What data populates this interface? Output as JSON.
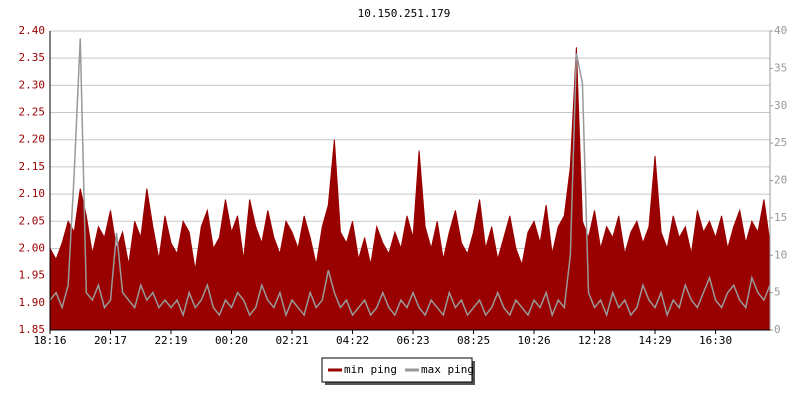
{
  "chart_data": {
    "type": "area",
    "title": "10.150.251.179",
    "categories": [
      "18:16",
      null,
      null,
      null,
      null,
      null,
      null,
      null,
      null,
      null,
      "20:17",
      null,
      null,
      null,
      null,
      null,
      null,
      null,
      null,
      null,
      "22:19",
      null,
      null,
      null,
      null,
      null,
      null,
      null,
      null,
      null,
      "00:20",
      null,
      null,
      null,
      null,
      null,
      null,
      null,
      null,
      null,
      "02:21",
      null,
      null,
      null,
      null,
      null,
      null,
      null,
      null,
      null,
      "04:22",
      null,
      null,
      null,
      null,
      null,
      null,
      null,
      null,
      null,
      "06:23",
      null,
      null,
      null,
      null,
      null,
      null,
      null,
      null,
      null,
      "08:25",
      null,
      null,
      null,
      null,
      null,
      null,
      null,
      null,
      null,
      "10:26",
      null,
      null,
      null,
      null,
      null,
      null,
      null,
      null,
      null,
      "12:28",
      null,
      null,
      null,
      null,
      null,
      null,
      null,
      null,
      null,
      "14:29",
      null,
      null,
      null,
      null,
      null,
      null,
      null,
      null,
      null,
      "16:30",
      null,
      null,
      null,
      null,
      null,
      null,
      null,
      null,
      null
    ],
    "series": [
      {
        "name": "min ping",
        "color": "#990000",
        "style": "area",
        "axis": "y",
        "values": [
          2.0,
          1.98,
          2.01,
          2.05,
          2.03,
          2.11,
          2.06,
          1.99,
          2.04,
          2.02,
          2.07,
          2.0,
          2.03,
          1.97,
          2.05,
          2.02,
          2.11,
          2.04,
          1.98,
          2.06,
          2.01,
          1.99,
          2.05,
          2.03,
          1.96,
          2.04,
          2.07,
          2.0,
          2.02,
          2.09,
          2.03,
          2.06,
          1.98,
          2.09,
          2.04,
          2.01,
          2.07,
          2.02,
          1.99,
          2.05,
          2.03,
          2.0,
          2.06,
          2.02,
          1.97,
          2.04,
          2.08,
          2.2,
          2.03,
          2.01,
          2.05,
          1.98,
          2.02,
          1.97,
          2.04,
          2.01,
          1.99,
          2.03,
          2.0,
          2.06,
          2.02,
          2.18,
          2.04,
          2.0,
          2.05,
          1.98,
          2.03,
          2.07,
          2.01,
          1.99,
          2.03,
          2.09,
          2.0,
          2.04,
          1.98,
          2.02,
          2.06,
          2.0,
          1.97,
          2.03,
          2.05,
          2.01,
          2.08,
          1.99,
          2.04,
          2.06,
          2.15,
          2.37,
          2.05,
          2.02,
          2.07,
          2.0,
          2.04,
          2.02,
          2.06,
          1.99,
          2.03,
          2.05,
          2.01,
          2.04,
          2.17,
          2.03,
          2.0,
          2.06,
          2.02,
          2.04,
          1.99,
          2.07,
          2.03,
          2.05,
          2.02,
          2.06,
          2.0,
          2.04,
          2.07,
          2.01,
          2.05,
          2.03,
          2.09,
          2.01
        ]
      },
      {
        "name": "max ping",
        "color": "#999999",
        "style": "line",
        "axis": "y2",
        "values": [
          4,
          5,
          3,
          6,
          21,
          39,
          5,
          4,
          6,
          3,
          4,
          13,
          5,
          4,
          3,
          6,
          4,
          5,
          3,
          4,
          3,
          4,
          2,
          5,
          3,
          4,
          6,
          3,
          2,
          4,
          3,
          5,
          4,
          2,
          3,
          6,
          4,
          3,
          5,
          2,
          4,
          3,
          2,
          5,
          3,
          4,
          8,
          5,
          3,
          4,
          2,
          3,
          4,
          2,
          3,
          5,
          3,
          2,
          4,
          3,
          5,
          3,
          2,
          4,
          3,
          2,
          5,
          3,
          4,
          2,
          3,
          4,
          2,
          3,
          5,
          3,
          2,
          4,
          3,
          2,
          4,
          3,
          5,
          2,
          4,
          3,
          10,
          37,
          33,
          5,
          3,
          4,
          2,
          5,
          3,
          4,
          2,
          3,
          6,
          4,
          3,
          5,
          2,
          4,
          3,
          6,
          4,
          3,
          5,
          7,
          4,
          3,
          5,
          6,
          4,
          3,
          7,
          5,
          4,
          6
        ]
      }
    ],
    "ylim": [
      1.85,
      2.4
    ],
    "yticks": [
      1.85,
      {
        "value": 1.9,
        "label": "1.90"
      },
      1.95,
      {
        "value": 2,
        "label": "2.00"
      },
      2.05,
      {
        "value": 2.1,
        "label": "2.10"
      },
      2.15,
      {
        "value": 2.2,
        "label": "2.20"
      },
      2.25,
      {
        "value": 2.3,
        "label": "2.30"
      },
      2.35,
      {
        "value": 2.4,
        "label": "2.40"
      }
    ],
    "y2lim": [
      0,
      40
    ],
    "y2ticks": [
      0,
      5,
      10,
      15,
      20,
      25,
      30,
      35,
      40
    ],
    "grid": true,
    "legend": "bottom"
  }
}
